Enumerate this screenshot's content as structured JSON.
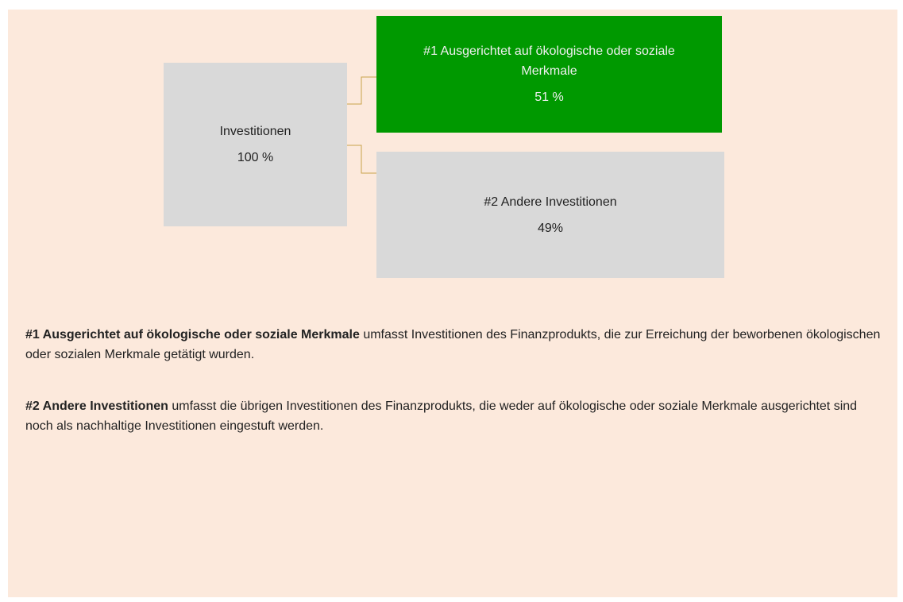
{
  "nodes": [
    {
      "label": "Investitionen",
      "value": "100 %"
    },
    {
      "label": "#1 Ausgerichtet auf ökologische oder soziale Merkmale",
      "value": "51 %"
    },
    {
      "label": "#2 Andere Investitionen",
      "value": "49%"
    }
  ],
  "notes": [
    {
      "term": "#1 Ausgerichtet auf ökologische oder soziale Merkmale",
      "text": " umfasst Investitionen des Finanzprodukts, die zur Erreichung der beworbenen ökologischen oder sozialen Merkmale getätigt wurden."
    },
    {
      "term": "#2 Andere Investitionen",
      "text": " umfasst die übrigen Investitionen des Finanzprodukts, die weder auf ökologische oder soziale Merkmale ausgerichtet sind noch als nachhaltige Investitionen eingestuft werden."
    }
  ]
}
